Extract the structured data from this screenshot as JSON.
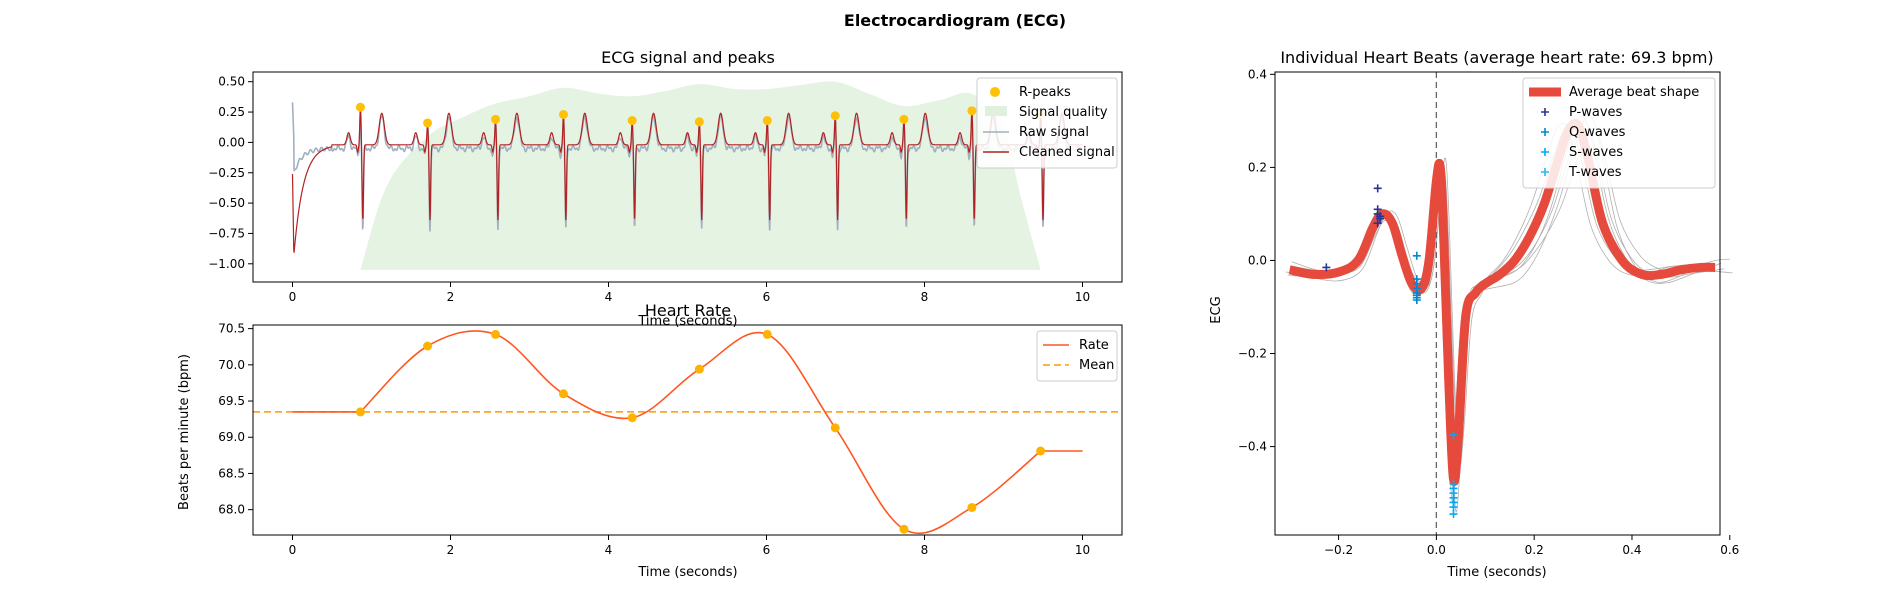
{
  "figure": {
    "title": "Electrocardiogram (ECG)"
  },
  "chart_data": [
    {
      "id": "ecg",
      "type": "line",
      "title": "ECG signal and peaks",
      "xlabel": "Time (seconds)",
      "ylabel": "",
      "xlim": [
        -0.5,
        10.5
      ],
      "ylim": [
        -1.15,
        0.58
      ],
      "xticks": [
        0,
        2,
        4,
        6,
        8,
        10
      ],
      "yticks": [
        0.5,
        0.25,
        0.0,
        -0.25,
        -0.5,
        -0.75,
        -1.0
      ],
      "ytick_labels": [
        "0.50",
        "0.25",
        "0.00",
        "−0.25",
        "−0.50",
        "−0.75",
        "−1.00"
      ],
      "legend": {
        "placement": "top-right",
        "entries": [
          "R-peaks",
          "Signal quality",
          "Raw signal",
          "Cleaned signal"
        ]
      },
      "r_peaks": {
        "name": "R-peaks",
        "x": [
          0.86,
          1.71,
          2.57,
          3.43,
          4.3,
          5.15,
          6.01,
          6.87,
          7.74,
          8.6,
          9.47
        ],
        "y": [
          0.29,
          0.16,
          0.19,
          0.23,
          0.18,
          0.17,
          0.18,
          0.22,
          0.19,
          0.26,
          0.24
        ]
      },
      "signal_quality": {
        "name": "Signal quality",
        "x": [
          0.86,
          1.2,
          1.71,
          2.2,
          2.57,
          3.0,
          3.43,
          3.9,
          4.3,
          4.7,
          5.15,
          5.6,
          6.01,
          6.4,
          6.87,
          7.3,
          7.74,
          8.2,
          8.6,
          9.0,
          9.2,
          9.47
        ],
        "y": [
          -1.05,
          -0.35,
          0.05,
          0.22,
          0.32,
          0.38,
          0.45,
          0.4,
          0.38,
          0.42,
          0.48,
          0.44,
          0.44,
          0.47,
          0.5,
          0.4,
          0.3,
          0.35,
          0.4,
          0.15,
          -0.4,
          -1.05
        ]
      },
      "series": [
        {
          "name": "Raw signal",
          "color": "#a0b0c0",
          "width": 1.6
        },
        {
          "name": "Cleaned signal",
          "color": "#b22222",
          "width": 1.2
        }
      ],
      "colors": {
        "r_peaks": "#ffc107",
        "signal_quality": "#dff0dc"
      }
    },
    {
      "id": "rate",
      "type": "line",
      "title": "Heart Rate",
      "xlabel": "Time (seconds)",
      "ylabel": "Beats per minute (bpm)",
      "xlim": [
        -0.5,
        10.5
      ],
      "ylim": [
        67.65,
        70.55
      ],
      "xticks": [
        0,
        2,
        4,
        6,
        8,
        10
      ],
      "yticks": [
        70.5,
        70.0,
        69.5,
        69.0,
        68.5,
        68.0
      ],
      "legend": {
        "placement": "top-right",
        "entries": [
          "Rate",
          "Mean"
        ]
      },
      "rate_points": {
        "x": [
          0.86,
          1.71,
          2.57,
          3.43,
          4.3,
          5.15,
          6.01,
          6.87,
          7.74,
          8.6,
          9.47
        ],
        "y": [
          69.35,
          70.26,
          70.42,
          69.6,
          69.27,
          69.94,
          70.42,
          69.13,
          67.73,
          68.03,
          68.81
        ]
      },
      "rate_flat_start": [
        0,
        69.35
      ],
      "rate_flat_end": [
        10,
        68.81
      ],
      "mean": 69.35,
      "series": [
        {
          "name": "Rate",
          "color": "#ff5722"
        },
        {
          "name": "Mean",
          "color": "#ff9800"
        }
      ],
      "colors": {
        "points": "#ffb300"
      }
    },
    {
      "id": "beats",
      "type": "line",
      "title": "Individual Heart Beats (average heart rate: 69.3 bpm)",
      "xlabel": "Time (seconds)",
      "ylabel": "ECG",
      "xlim": [
        -0.33,
        0.58
      ],
      "ylim": [
        -0.59,
        0.405
      ],
      "xticks": [
        -0.2,
        0.0,
        0.2,
        0.4,
        0.6
      ],
      "xtick_labels": [
        "−0.2",
        "0.0",
        "0.2",
        "0.4",
        "0.6"
      ],
      "yticks": [
        0.4,
        0.2,
        0.0,
        -0.2,
        -0.4
      ],
      "ytick_labels": [
        "0.4",
        "0.2",
        "0.0",
        "−0.2",
        "−0.4"
      ],
      "legend": {
        "placement": "top-right",
        "entries": [
          "Average beat shape",
          "P-waves",
          "Q-waves",
          "S-waves",
          "T-waves"
        ]
      },
      "average_beat": {
        "name": "Average beat shape",
        "x": [
          -0.3,
          -0.25,
          -0.2,
          -0.16,
          -0.13,
          -0.11,
          -0.09,
          -0.07,
          -0.05,
          -0.03,
          -0.015,
          0.0,
          0.008,
          0.015,
          0.025,
          0.035,
          0.045,
          0.06,
          0.08,
          0.1,
          0.13,
          0.16,
          0.19,
          0.22,
          0.25,
          0.27,
          0.29,
          0.31,
          0.34,
          0.38,
          0.42,
          0.46,
          0.5,
          0.54,
          0.57
        ],
        "y": [
          -0.02,
          -0.03,
          -0.025,
          0.0,
          0.07,
          0.1,
          0.08,
          0.01,
          -0.05,
          -0.06,
          0.0,
          0.17,
          0.2,
          0.05,
          -0.25,
          -0.47,
          -0.38,
          -0.12,
          -0.07,
          -0.05,
          -0.03,
          0.0,
          0.05,
          0.12,
          0.22,
          0.28,
          0.29,
          0.22,
          0.08,
          0.0,
          -0.03,
          -0.03,
          -0.02,
          -0.015,
          -0.015
        ]
      },
      "waves": [
        {
          "name": "P-waves",
          "color": "#283593",
          "x": [
            -0.225,
            -0.12,
            -0.12,
            -0.115,
            -0.12,
            -0.115,
            -0.12
          ],
          "y": [
            -0.015,
            0.155,
            0.11,
            0.09,
            0.08,
            0.095,
            0.1
          ]
        },
        {
          "name": "Q-waves",
          "color": "#0288d1",
          "x": [
            -0.04,
            -0.04,
            -0.04,
            -0.04,
            -0.04,
            -0.04,
            -0.04,
            -0.04
          ],
          "y": [
            0.01,
            -0.04,
            -0.05,
            -0.06,
            -0.07,
            -0.075,
            -0.08,
            -0.085
          ]
        },
        {
          "name": "S-waves",
          "color": "#03a9f4",
          "x": [
            0.035,
            0.035,
            0.035,
            0.035,
            0.035,
            0.035,
            0.035,
            0.035
          ],
          "y": [
            -0.375,
            -0.48,
            -0.49,
            -0.5,
            -0.51,
            -0.52,
            -0.53,
            -0.545
          ]
        },
        {
          "name": "T-waves",
          "color": "#29b6f6",
          "x": [],
          "y": []
        }
      ],
      "marker_x": 0.0,
      "colors": {
        "average": "#e64a3d",
        "individual": "#b0b0b0"
      }
    }
  ]
}
